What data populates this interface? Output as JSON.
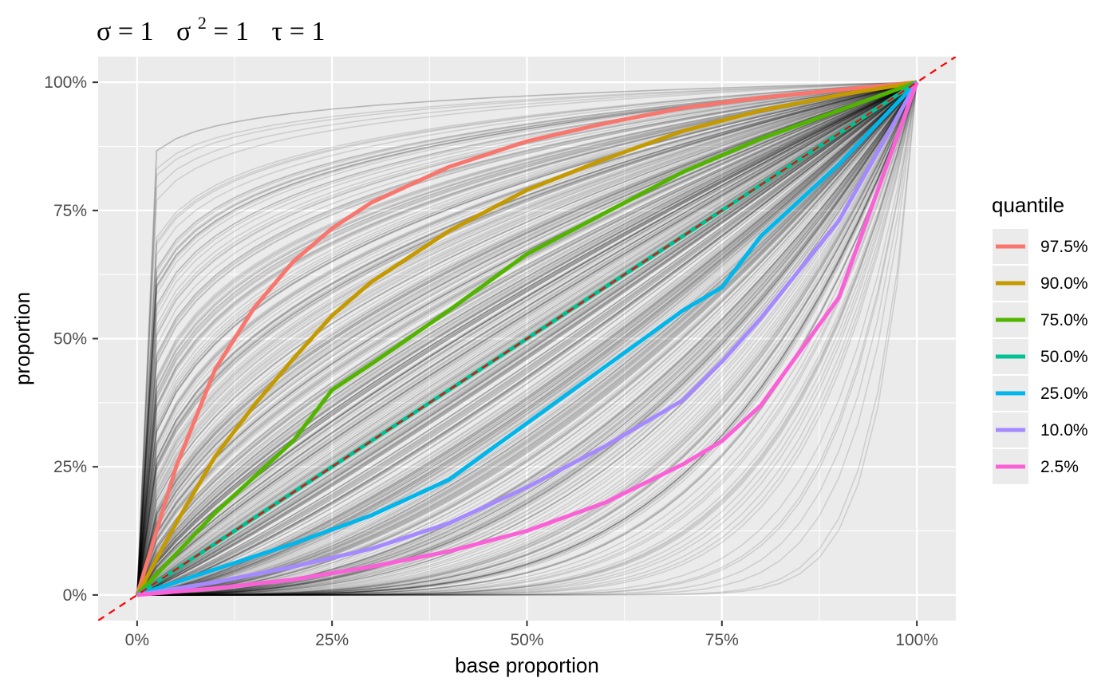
{
  "chart_data": {
    "type": "line",
    "title": {
      "sigma": "σ = 1",
      "sigma2_base": "σ",
      "sigma2_exp": "2",
      "sigma2_rest": " = 1",
      "tau": "τ = 1"
    },
    "xlabel": "base proportion",
    "ylabel": "proportion",
    "xlim": [
      -0.05,
      1.05
    ],
    "ylim": [
      -0.05,
      1.05
    ],
    "x_ticks": [
      0,
      0.25,
      0.5,
      0.75,
      1
    ],
    "x_tick_labels": [
      "0%",
      "25%",
      "50%",
      "75%",
      "100%"
    ],
    "y_ticks": [
      0,
      0.25,
      0.5,
      0.75,
      1
    ],
    "y_tick_labels": [
      "0%",
      "25%",
      "50%",
      "75%",
      "100%"
    ],
    "grid": true,
    "background": "#ebebeb",
    "reference_line": {
      "slope": 1,
      "intercept": 0,
      "color": "#ff0000",
      "style": "dashed"
    },
    "simulated_curves": {
      "color": "#000000",
      "opacity": 0.12,
      "description_shown": false
    },
    "legend": {
      "title": "quantile",
      "position": "right"
    },
    "series": [
      {
        "name": "97.5%",
        "color": "#F8766D",
        "points": [
          [
            0,
            0
          ],
          [
            0.05,
            0.25
          ],
          [
            0.1,
            0.44
          ],
          [
            0.15,
            0.56
          ],
          [
            0.2,
            0.65
          ],
          [
            0.25,
            0.715
          ],
          [
            0.3,
            0.765
          ],
          [
            0.4,
            0.835
          ],
          [
            0.5,
            0.885
          ],
          [
            0.6,
            0.92
          ],
          [
            0.7,
            0.95
          ],
          [
            0.8,
            0.97
          ],
          [
            0.9,
            0.985
          ],
          [
            1,
            1
          ]
        ]
      },
      {
        "name": "90.0%",
        "color": "#C49A00",
        "points": [
          [
            0,
            0
          ],
          [
            0.05,
            0.14
          ],
          [
            0.1,
            0.27
          ],
          [
            0.15,
            0.37
          ],
          [
            0.2,
            0.46
          ],
          [
            0.25,
            0.545
          ],
          [
            0.3,
            0.61
          ],
          [
            0.4,
            0.71
          ],
          [
            0.5,
            0.79
          ],
          [
            0.6,
            0.85
          ],
          [
            0.7,
            0.905
          ],
          [
            0.8,
            0.945
          ],
          [
            0.9,
            0.975
          ],
          [
            1,
            1
          ]
        ]
      },
      {
        "name": "75.0%",
        "color": "#53B400",
        "points": [
          [
            0,
            0
          ],
          [
            0.05,
            0.08
          ],
          [
            0.1,
            0.16
          ],
          [
            0.15,
            0.23
          ],
          [
            0.2,
            0.3
          ],
          [
            0.25,
            0.4
          ],
          [
            0.3,
            0.45
          ],
          [
            0.4,
            0.555
          ],
          [
            0.5,
            0.665
          ],
          [
            0.6,
            0.745
          ],
          [
            0.7,
            0.825
          ],
          [
            0.8,
            0.89
          ],
          [
            0.9,
            0.945
          ],
          [
            1,
            1
          ]
        ]
      },
      {
        "name": "50.0%",
        "color": "#00C094",
        "points": [
          [
            0,
            0
          ],
          [
            0.1,
            0.1
          ],
          [
            0.2,
            0.2
          ],
          [
            0.3,
            0.3
          ],
          [
            0.4,
            0.4
          ],
          [
            0.5,
            0.5
          ],
          [
            0.6,
            0.6
          ],
          [
            0.7,
            0.7
          ],
          [
            0.8,
            0.8
          ],
          [
            0.9,
            0.9
          ],
          [
            1,
            1
          ]
        ]
      },
      {
        "name": "25.0%",
        "color": "#00B6EB",
        "points": [
          [
            0,
            0
          ],
          [
            0.1,
            0.05
          ],
          [
            0.2,
            0.1
          ],
          [
            0.3,
            0.155
          ],
          [
            0.4,
            0.225
          ],
          [
            0.5,
            0.335
          ],
          [
            0.6,
            0.445
          ],
          [
            0.7,
            0.555
          ],
          [
            0.75,
            0.6
          ],
          [
            0.8,
            0.7
          ],
          [
            0.9,
            0.84
          ],
          [
            1,
            1
          ]
        ]
      },
      {
        "name": "10.0%",
        "color": "#A58AFF",
        "points": [
          [
            0,
            0
          ],
          [
            0.1,
            0.025
          ],
          [
            0.2,
            0.055
          ],
          [
            0.3,
            0.09
          ],
          [
            0.4,
            0.14
          ],
          [
            0.5,
            0.21
          ],
          [
            0.6,
            0.29
          ],
          [
            0.7,
            0.38
          ],
          [
            0.75,
            0.455
          ],
          [
            0.8,
            0.54
          ],
          [
            0.9,
            0.73
          ],
          [
            1,
            1
          ]
        ]
      },
      {
        "name": "2.5%",
        "color": "#FB61D7",
        "points": [
          [
            0,
            0
          ],
          [
            0.1,
            0.013
          ],
          [
            0.2,
            0.03
          ],
          [
            0.3,
            0.055
          ],
          [
            0.4,
            0.085
          ],
          [
            0.5,
            0.125
          ],
          [
            0.6,
            0.18
          ],
          [
            0.7,
            0.255
          ],
          [
            0.75,
            0.3
          ],
          [
            0.8,
            0.37
          ],
          [
            0.9,
            0.58
          ],
          [
            1,
            1
          ]
        ]
      }
    ]
  }
}
